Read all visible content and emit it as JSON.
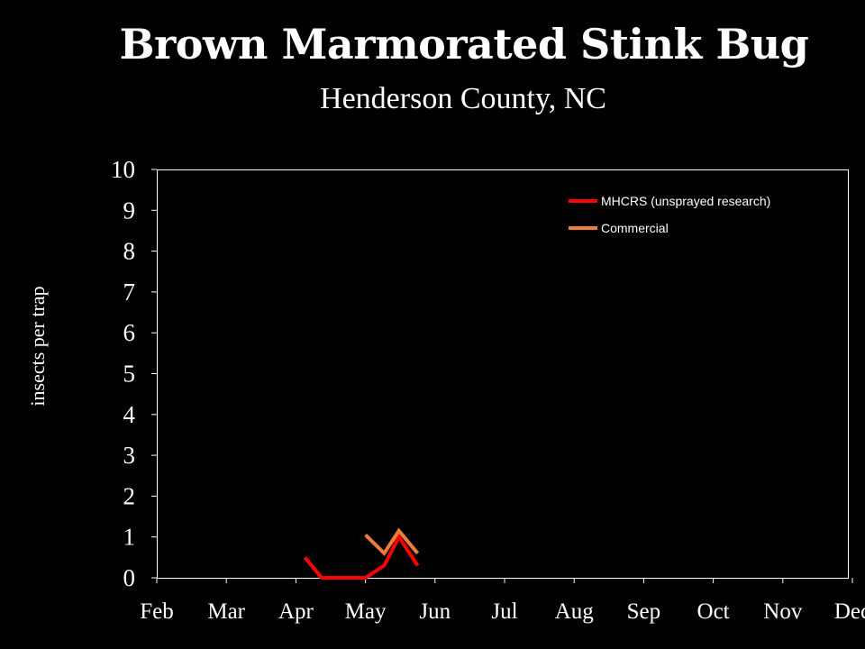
{
  "header": {
    "title": "Brown Marmorated Stink Bug",
    "subtitle": "Henderson County, NC"
  },
  "chart_data": {
    "type": "line",
    "title": "Brown Marmorated Stink Bug",
    "subtitle": "Henderson County, NC",
    "xlabel": "",
    "ylabel": "insects per trap",
    "categories": [
      "Feb",
      "Mar",
      "Apr",
      "May",
      "Jun",
      "Jul",
      "Aug",
      "Sep",
      "Oct",
      "Nov",
      "Dec"
    ],
    "ylim": [
      0,
      10
    ],
    "yticks": [
      "0",
      "1",
      "2",
      "3",
      "4",
      "5",
      "6",
      "7",
      "8",
      "9",
      "10"
    ],
    "grid": false,
    "legend_position": "top-right",
    "series": [
      {
        "name": "MHCRS (unsprayed research)",
        "color": "#ff0000",
        "x": [
          2.13,
          2.37,
          2.68,
          3.0,
          3.27,
          3.48,
          3.75
        ],
        "y": [
          0.5,
          0,
          0,
          0,
          0.3,
          1.0,
          0.3
        ]
      },
      {
        "name": "Commercial",
        "color": "#f07c3c",
        "x": [
          3.0,
          3.27,
          3.48,
          3.75
        ],
        "y": [
          1.05,
          0.6,
          1.15,
          0.6
        ]
      }
    ]
  }
}
